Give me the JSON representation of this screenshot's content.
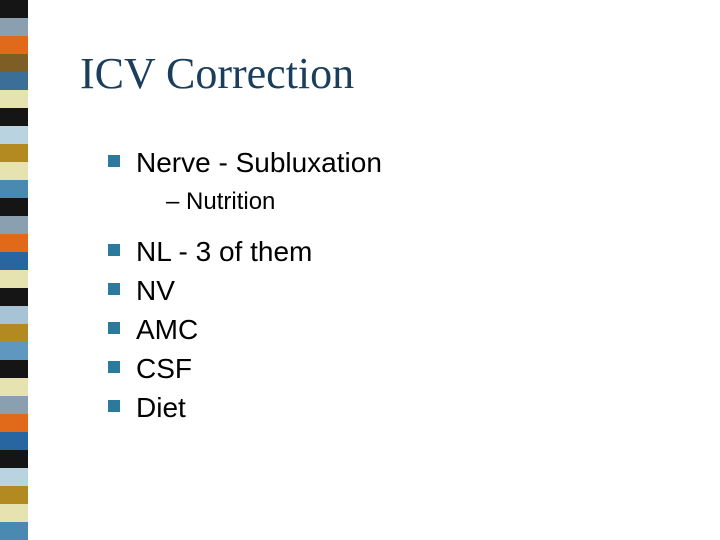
{
  "slide": {
    "title": "ICV Correction",
    "title_color": "#1a3e5c",
    "title_font": "Times New Roman",
    "title_fontsize": 44,
    "body_font": "Arial",
    "body_fontsize": 28,
    "sub_fontsize": 24,
    "background_color": "#ffffff",
    "bullet_color": "#2b7a9b",
    "bullet_size": 12,
    "items": [
      {
        "text": "Nerve - Subluxation",
        "sub": [
          {
            "text": "– Nutrition"
          }
        ]
      },
      {
        "text": "NL - 3 of them"
      },
      {
        "text": "NV"
      },
      {
        "text": "AMC"
      },
      {
        "text": "CSF"
      },
      {
        "text": "Diet"
      }
    ]
  },
  "sidebar": {
    "width": 28,
    "stripes": [
      "#151515",
      "#8aa0b0",
      "#e06a1a",
      "#7d5f26",
      "#3b6f97",
      "#e7e3b1",
      "#151515",
      "#b9d3e0",
      "#b38a22",
      "#e7e3b1",
      "#4b8ab0",
      "#151515",
      "#8aa0b0",
      "#e06a1a",
      "#2766a0",
      "#e7e3b1",
      "#151515",
      "#a6c4d6",
      "#b38a22",
      "#6097bf",
      "#151515",
      "#e7e3b1",
      "#8aa0b0",
      "#e06a1a",
      "#2766a0",
      "#151515",
      "#b9d3e0",
      "#b38a22",
      "#e7e3b1",
      "#4b8ab0"
    ]
  }
}
